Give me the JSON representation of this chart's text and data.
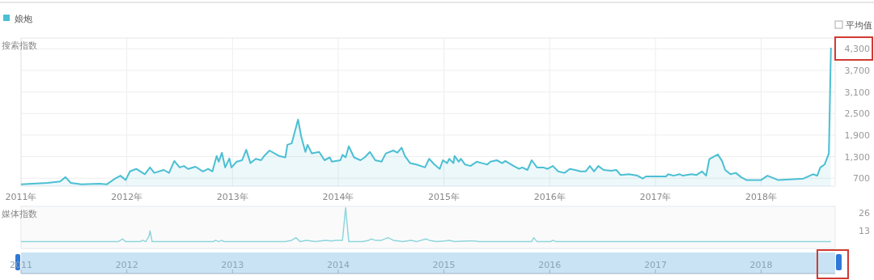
{
  "chart_data": [
    {
      "type": "area",
      "ylabel": "搜索指数",
      "legend": "top left",
      "grid": true,
      "annotations": [
        "平均值"
      ],
      "xlim": [
        2011,
        2018.7
      ],
      "ylim": [
        480,
        4600
      ],
      "xticks": [
        {
          "value": 2011,
          "label": "2011年"
        },
        {
          "value": 2012,
          "label": "2012年"
        },
        {
          "value": 2013,
          "label": "2013年"
        },
        {
          "value": 2014,
          "label": "2014年"
        },
        {
          "value": 2015,
          "label": "2015年"
        },
        {
          "value": 2016,
          "label": "2016年"
        },
        {
          "value": 2017,
          "label": "2017年"
        },
        {
          "value": 2018,
          "label": "2018年"
        }
      ],
      "yticks": [
        700,
        {
          "value": 1300,
          "label": "1,300"
        },
        {
          "value": 1900,
          "label": "1,900"
        },
        {
          "value": 2500,
          "label": "2,500"
        },
        {
          "value": 3100,
          "label": "3,100"
        },
        {
          "value": 3700,
          "label": "3,700"
        },
        {
          "value": 4300,
          "label": "4,300"
        }
      ],
      "x": [
        2011.0,
        2011.25,
        2011.37,
        2011.42,
        2011.47,
        2011.57,
        2011.74,
        2011.81,
        2011.89,
        2011.94,
        2011.99,
        2012.03,
        2012.09,
        2012.17,
        2012.22,
        2012.26,
        2012.35,
        2012.4,
        2012.45,
        2012.5,
        2012.54,
        2012.58,
        2012.65,
        2012.72,
        2012.77,
        2012.81,
        2012.85,
        2012.87,
        2012.9,
        2012.93,
        2012.97,
        2012.99,
        2013.04,
        2013.09,
        2013.13,
        2013.17,
        2013.22,
        2013.27,
        2013.3,
        2013.35,
        2013.44,
        2013.5,
        2013.52,
        2013.56,
        2013.62,
        2013.65,
        2013.69,
        2013.71,
        2013.75,
        2013.82,
        2013.87,
        2013.92,
        2013.94,
        2014.02,
        2014.04,
        2014.07,
        2014.1,
        2014.15,
        2014.21,
        2014.25,
        2014.3,
        2014.35,
        2014.41,
        2014.45,
        2014.52,
        2014.56,
        2014.6,
        2014.63,
        2014.68,
        2014.74,
        2014.82,
        2014.86,
        2014.91,
        2014.96,
        2014.99,
        2015.03,
        2015.05,
        2015.09,
        2015.1,
        2015.14,
        2015.16,
        2015.2,
        2015.25,
        2015.31,
        2015.36,
        2015.41,
        2015.44,
        2015.5,
        2015.55,
        2015.58,
        2015.66,
        2015.71,
        2015.74,
        2015.79,
        2015.83,
        2015.88,
        2015.94,
        2015.98,
        2016.03,
        2016.08,
        2016.14,
        2016.19,
        2016.24,
        2016.29,
        2016.34,
        2016.38,
        2016.42,
        2016.46,
        2016.51,
        2016.58,
        2016.63,
        2016.67,
        2016.75,
        2016.83,
        2016.88,
        2016.91,
        2017.1,
        2017.12,
        2017.17,
        2017.23,
        2017.26,
        2017.34,
        2017.39,
        2017.44,
        2017.48,
        2017.51,
        2017.59,
        2017.63,
        2017.66,
        2017.71,
        2017.76,
        2017.81,
        2017.86,
        2018.0,
        2018.06,
        2018.16,
        2018.4,
        2018.49,
        2018.53,
        2018.56,
        2018.6,
        2018.64,
        2018.66
      ],
      "series": [
        {
          "name": "娘炮",
          "color": "#4bbfd3",
          "values": [
            530,
            570,
            610,
            730,
            570,
            530,
            550,
            530,
            690,
            770,
            650,
            890,
            960,
            810,
            1000,
            850,
            930,
            850,
            1180,
            1000,
            1040,
            960,
            1020,
            890,
            960,
            890,
            1320,
            1160,
            1410,
            1000,
            1250,
            1000,
            1160,
            1200,
            1490,
            1120,
            1240,
            1200,
            1320,
            1470,
            1320,
            1280,
            1630,
            1670,
            2330,
            1860,
            1430,
            1630,
            1390,
            1430,
            1200,
            1280,
            1160,
            1200,
            1350,
            1280,
            1590,
            1280,
            1200,
            1280,
            1430,
            1200,
            1160,
            1390,
            1470,
            1410,
            1550,
            1320,
            1120,
            1080,
            1000,
            1240,
            1080,
            960,
            1200,
            1120,
            1240,
            1120,
            1320,
            1160,
            1240,
            1080,
            1040,
            1160,
            1120,
            1080,
            1160,
            1200,
            1120,
            1180,
            1040,
            960,
            1000,
            930,
            1200,
            1000,
            1000,
            960,
            1040,
            890,
            850,
            960,
            930,
            890,
            890,
            1040,
            890,
            1040,
            930,
            910,
            930,
            790,
            810,
            770,
            690,
            750,
            750,
            810,
            770,
            810,
            770,
            810,
            790,
            890,
            770,
            1230,
            1360,
            1180,
            930,
            810,
            850,
            730,
            650,
            650,
            770,
            650,
            690,
            810,
            770,
            1000,
            1080,
            1390,
            4330
          ]
        }
      ]
    },
    {
      "type": "line",
      "ylabel": "媒体指数",
      "xlim": [
        2011,
        2018.7
      ],
      "ylim": [
        0,
        31
      ],
      "xticks": [
        2011,
        2012,
        2013,
        2014,
        2015,
        2016,
        2017,
        2018
      ],
      "yticks": [
        13,
        26
      ],
      "x": [
        2011.0,
        2011.92,
        2011.96,
        2011.99,
        2012.13,
        2012.15,
        2012.18,
        2012.21,
        2012.22,
        2012.24,
        2012.82,
        2012.84,
        2012.87,
        2012.9,
        2012.92,
        2013.5,
        2013.56,
        2013.6,
        2013.64,
        2013.7,
        2013.78,
        2013.88,
        2013.94,
        2013.98,
        2014.04,
        2014.07,
        2014.1,
        2014.23,
        2014.29,
        2014.31,
        2014.35,
        2014.41,
        2014.47,
        2014.52,
        2014.61,
        2014.69,
        2014.74,
        2014.83,
        2014.86,
        2014.93,
        2015.01,
        2015.05,
        2015.1,
        2015.23,
        2015.28,
        2015.33,
        2015.83,
        2015.85,
        2015.88,
        2016.01,
        2016.03,
        2016.06,
        2018.66
      ],
      "series": [
        {
          "color": "#8fd6dc",
          "values": [
            5,
            5,
            7,
            5,
            5,
            6,
            5,
            9,
            13,
            5,
            5,
            6,
            5,
            6,
            5,
            5,
            6,
            8,
            5,
            6,
            5,
            6,
            5.5,
            6,
            6,
            30,
            5,
            5,
            6,
            7,
            6,
            6,
            8,
            6,
            5,
            6,
            5,
            7,
            6,
            5,
            5.5,
            6,
            5,
            5.5,
            5.5,
            5,
            5,
            8,
            5,
            5,
            6,
            5,
            5
          ]
        }
      ]
    }
  ]
}
